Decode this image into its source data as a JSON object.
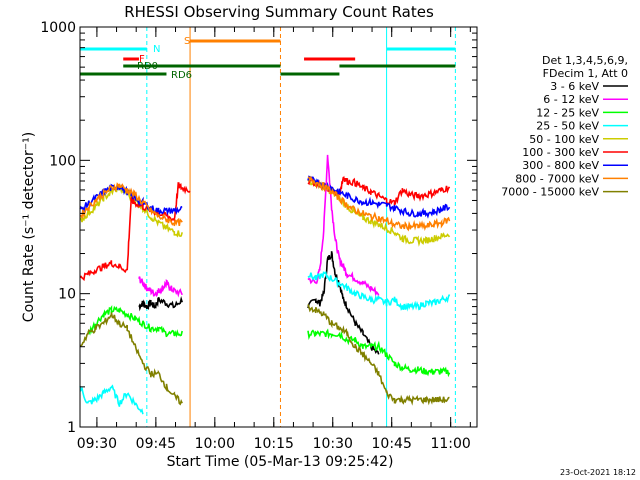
{
  "chart_data": {
    "type": "line",
    "title": "RHESSI Observing Summary Count Rates",
    "xlabel": "Start Time (05-Mar-13 09:25:42)",
    "ylabel": "Count Rate (s⁻¹ detector⁻¹)",
    "yscale": "log",
    "ylim": [
      1,
      1000
    ],
    "xlim_minutes_since_0925_42": [
      0,
      101
    ],
    "x_ticks": [
      {
        "label": "09:30",
        "minute": 4.3
      },
      {
        "label": "09:45",
        "minute": 19.3
      },
      {
        "label": "10:00",
        "minute": 34.3
      },
      {
        "label": "10:15",
        "minute": 49.3
      },
      {
        "label": "10:30",
        "minute": 64.3
      },
      {
        "label": "10:45",
        "minute": 79.3
      },
      {
        "label": "11:00",
        "minute": 94.3
      }
    ],
    "y_ticks": [
      {
        "label": "1",
        "value": 1
      },
      {
        "label": "10",
        "value": 10
      },
      {
        "label": "100",
        "value": 100
      },
      {
        "label": "1000",
        "value": 1000
      }
    ],
    "legend_header": [
      "Det 1,3,4,5,6,9,",
      "FDecim 1, Att 0"
    ],
    "legend_position": "right",
    "series": [
      {
        "name": "3 - 6 keV",
        "color": "#000000",
        "points": [
          [
            15,
            8
          ],
          [
            16,
            8.5
          ],
          [
            17,
            8
          ],
          [
            18,
            8.5
          ],
          [
            19,
            8
          ],
          [
            20,
            9
          ],
          [
            22,
            8.5
          ],
          [
            24,
            8
          ],
          [
            26,
            9
          ],
          [
            58,
            8
          ],
          [
            60,
            9
          ],
          [
            61,
            8.5
          ],
          [
            62,
            10
          ],
          [
            63,
            18
          ],
          [
            64,
            20
          ],
          [
            65,
            14
          ],
          [
            66,
            12
          ],
          [
            67,
            9
          ],
          [
            68,
            8
          ],
          [
            70,
            6
          ],
          [
            72,
            5
          ],
          [
            74,
            4
          ],
          [
            76,
            3.5
          ]
        ]
      },
      {
        "name": "6 - 12 keV",
        "color": "#ff00ff",
        "points": [
          [
            15,
            13
          ],
          [
            16,
            12
          ],
          [
            17,
            11
          ],
          [
            18,
            10.5
          ],
          [
            19,
            10
          ],
          [
            20,
            10.5
          ],
          [
            21,
            11
          ],
          [
            22,
            12
          ],
          [
            23,
            11
          ],
          [
            24,
            10.5
          ],
          [
            26,
            10
          ],
          [
            58,
            13
          ],
          [
            60,
            12
          ],
          [
            61,
            15
          ],
          [
            62,
            30
          ],
          [
            63,
            110
          ],
          [
            64,
            45
          ],
          [
            65,
            25
          ],
          [
            66,
            18
          ],
          [
            67,
            16
          ],
          [
            68,
            14
          ],
          [
            70,
            13
          ],
          [
            72,
            12
          ],
          [
            74,
            11
          ],
          [
            76,
            10
          ]
        ]
      },
      {
        "name": "12 - 25 keV",
        "color": "#00ff00",
        "points": [
          [
            2,
            5
          ],
          [
            4,
            6
          ],
          [
            6,
            7
          ],
          [
            8,
            7.5
          ],
          [
            10,
            7.5
          ],
          [
            12,
            7
          ],
          [
            14,
            6.5
          ],
          [
            16,
            6
          ],
          [
            18,
            5.5
          ],
          [
            20,
            5.5
          ],
          [
            22,
            5
          ],
          [
            24,
            5
          ],
          [
            26,
            5
          ],
          [
            58,
            5
          ],
          [
            60,
            5
          ],
          [
            62,
            5
          ],
          [
            64,
            5
          ],
          [
            66,
            5
          ],
          [
            68,
            4.5
          ],
          [
            70,
            4.5
          ],
          [
            72,
            4
          ],
          [
            74,
            4
          ],
          [
            76,
            4
          ],
          [
            78,
            3.5
          ],
          [
            80,
            3
          ],
          [
            82,
            2.8
          ],
          [
            84,
            2.7
          ],
          [
            86,
            2.7
          ],
          [
            88,
            2.6
          ],
          [
            90,
            2.6
          ],
          [
            92,
            2.6
          ],
          [
            94,
            2.6
          ]
        ]
      },
      {
        "name": "25 - 50 keV",
        "color": "#00ffff",
        "points": [
          [
            0,
            2
          ],
          [
            2,
            1.5
          ],
          [
            4,
            1.6
          ],
          [
            6,
            1.8
          ],
          [
            8,
            2
          ],
          [
            10,
            1.5
          ],
          [
            12,
            1.8
          ],
          [
            14,
            1.5
          ],
          [
            16,
            1.3
          ],
          [
            58,
            14
          ],
          [
            60,
            13
          ],
          [
            62,
            14
          ],
          [
            64,
            13
          ],
          [
            66,
            12
          ],
          [
            68,
            11
          ],
          [
            70,
            10
          ],
          [
            72,
            9.5
          ],
          [
            74,
            9
          ],
          [
            76,
            9
          ],
          [
            78,
            8.5
          ],
          [
            80,
            9
          ],
          [
            82,
            8
          ],
          [
            84,
            8
          ],
          [
            86,
            8
          ],
          [
            88,
            8.5
          ],
          [
            90,
            8.5
          ],
          [
            92,
            9
          ],
          [
            94,
            9.5
          ]
        ]
      },
      {
        "name": "50 - 100 keV",
        "color": "#cccc00",
        "points": [
          [
            0,
            35
          ],
          [
            2,
            40
          ],
          [
            4,
            45
          ],
          [
            6,
            52
          ],
          [
            8,
            58
          ],
          [
            10,
            62
          ],
          [
            12,
            56
          ],
          [
            14,
            50
          ],
          [
            16,
            44
          ],
          [
            18,
            38
          ],
          [
            20,
            34
          ],
          [
            22,
            31
          ],
          [
            24,
            29
          ],
          [
            26,
            28
          ],
          [
            58,
            70
          ],
          [
            60,
            67
          ],
          [
            62,
            63
          ],
          [
            64,
            58
          ],
          [
            66,
            52
          ],
          [
            68,
            45
          ],
          [
            70,
            40
          ],
          [
            72,
            37
          ],
          [
            74,
            35
          ],
          [
            76,
            33
          ],
          [
            78,
            31
          ],
          [
            80,
            29
          ],
          [
            82,
            26
          ],
          [
            84,
            25
          ],
          [
            86,
            25
          ],
          [
            88,
            25
          ],
          [
            90,
            26
          ],
          [
            92,
            27
          ],
          [
            94,
            28
          ]
        ]
      },
      {
        "name": "100 - 300 keV",
        "color": "#ff0000",
        "points": [
          [
            0,
            13
          ],
          [
            2,
            14
          ],
          [
            4,
            15
          ],
          [
            6,
            16
          ],
          [
            8,
            17
          ],
          [
            10,
            16
          ],
          [
            12,
            15
          ],
          [
            13,
            50
          ],
          [
            14,
            48
          ],
          [
            16,
            45
          ],
          [
            18,
            42
          ],
          [
            20,
            40
          ],
          [
            22,
            38
          ],
          [
            24,
            36
          ],
          [
            25,
            65
          ],
          [
            26,
            62
          ],
          [
            28,
            60
          ],
          [
            58,
            70
          ],
          [
            60,
            68
          ],
          [
            62,
            64
          ],
          [
            64,
            60
          ],
          [
            66,
            56
          ],
          [
            67,
            75
          ],
          [
            68,
            70
          ],
          [
            70,
            68
          ],
          [
            72,
            62
          ],
          [
            74,
            58
          ],
          [
            76,
            54
          ],
          [
            78,
            50
          ],
          [
            80,
            48
          ],
          [
            82,
            60
          ],
          [
            84,
            55
          ],
          [
            86,
            54
          ],
          [
            88,
            55
          ],
          [
            90,
            57
          ],
          [
            92,
            60
          ],
          [
            94,
            63
          ]
        ]
      },
      {
        "name": "300 - 800 keV",
        "color": "#0000ff",
        "points": [
          [
            0,
            42
          ],
          [
            2,
            47
          ],
          [
            4,
            52
          ],
          [
            6,
            58
          ],
          [
            8,
            62
          ],
          [
            10,
            64
          ],
          [
            12,
            58
          ],
          [
            14,
            52
          ],
          [
            16,
            48
          ],
          [
            18,
            44
          ],
          [
            20,
            42
          ],
          [
            22,
            42
          ],
          [
            24,
            42
          ],
          [
            26,
            43
          ],
          [
            58,
            72
          ],
          [
            60,
            70
          ],
          [
            62,
            66
          ],
          [
            64,
            62
          ],
          [
            66,
            58
          ],
          [
            68,
            54
          ],
          [
            70,
            51
          ],
          [
            72,
            49
          ],
          [
            74,
            48
          ],
          [
            76,
            47
          ],
          [
            78,
            46
          ],
          [
            80,
            44
          ],
          [
            82,
            42
          ],
          [
            84,
            40
          ],
          [
            86,
            40
          ],
          [
            88,
            40
          ],
          [
            90,
            41
          ],
          [
            92,
            43
          ],
          [
            94,
            45
          ]
        ]
      },
      {
        "name": "800 - 7000 keV",
        "color": "#ff8000",
        "points": [
          [
            0,
            38
          ],
          [
            2,
            44
          ],
          [
            4,
            50
          ],
          [
            6,
            56
          ],
          [
            8,
            62
          ],
          [
            10,
            65
          ],
          [
            12,
            60
          ],
          [
            14,
            55
          ],
          [
            16,
            48
          ],
          [
            18,
            42
          ],
          [
            20,
            38
          ],
          [
            22,
            36
          ],
          [
            24,
            34
          ],
          [
            26,
            34
          ],
          [
            58,
            72
          ],
          [
            60,
            69
          ],
          [
            62,
            64
          ],
          [
            64,
            58
          ],
          [
            66,
            52
          ],
          [
            68,
            46
          ],
          [
            70,
            42
          ],
          [
            72,
            40
          ],
          [
            74,
            38
          ],
          [
            76,
            37
          ],
          [
            78,
            35
          ],
          [
            80,
            33
          ],
          [
            82,
            32
          ],
          [
            84,
            32
          ],
          [
            86,
            32
          ],
          [
            88,
            32
          ],
          [
            90,
            33
          ],
          [
            92,
            34
          ],
          [
            94,
            36
          ]
        ]
      },
      {
        "name": "7000 - 15000 keV",
        "color": "#808000",
        "points": [
          [
            0,
            4
          ],
          [
            2,
            5
          ],
          [
            4,
            5.5
          ],
          [
            6,
            6
          ],
          [
            8,
            7
          ],
          [
            10,
            6
          ],
          [
            12,
            5.5
          ],
          [
            14,
            4
          ],
          [
            16,
            3
          ],
          [
            18,
            2.5
          ],
          [
            20,
            2.5
          ],
          [
            22,
            2
          ],
          [
            24,
            1.7
          ],
          [
            26,
            1.5
          ],
          [
            58,
            8
          ],
          [
            60,
            7.5
          ],
          [
            62,
            7
          ],
          [
            64,
            6
          ],
          [
            66,
            5.5
          ],
          [
            68,
            5
          ],
          [
            70,
            4
          ],
          [
            72,
            3.5
          ],
          [
            74,
            3
          ],
          [
            76,
            2.5
          ],
          [
            78,
            1.8
          ],
          [
            80,
            1.6
          ],
          [
            82,
            1.6
          ],
          [
            84,
            1.6
          ],
          [
            86,
            1.6
          ],
          [
            88,
            1.6
          ],
          [
            90,
            1.6
          ],
          [
            92,
            1.6
          ],
          [
            94,
            1.6
          ]
        ]
      }
    ],
    "vertical_markers": [
      {
        "minute": 17.0,
        "color": "#00ffff",
        "style": "dashed"
      },
      {
        "minute": 28.0,
        "color": "#ff8000",
        "style": "solid"
      },
      {
        "minute": 51.0,
        "color": "#ff8000",
        "style": "dashed"
      },
      {
        "minute": 78.0,
        "color": "#00ffff",
        "style": "solid"
      },
      {
        "minute": 95.5,
        "color": "#00ffff",
        "style": "dashed"
      }
    ],
    "flag_bars": [
      {
        "label": "N",
        "color": "#00ffff",
        "segments": [
          [
            0,
            17
          ],
          [
            78,
            95.5
          ]
        ]
      },
      {
        "label": "S",
        "color": "#ff8000",
        "segments": [
          [
            28,
            51
          ]
        ]
      },
      {
        "label": "F",
        "color": "#ff0000",
        "segments": [
          [
            11,
            15
          ],
          [
            57,
            70
          ]
        ]
      },
      {
        "label": "RD0",
        "color": "#006400",
        "segments": [
          [
            11,
            51
          ],
          [
            66,
            95.5
          ]
        ]
      },
      {
        "label": "RD6",
        "color": "#006400",
        "segments": [
          [
            0,
            22
          ],
          [
            51,
            66
          ]
        ]
      }
    ],
    "timestamp": "23-Oct-2021 18:12"
  }
}
